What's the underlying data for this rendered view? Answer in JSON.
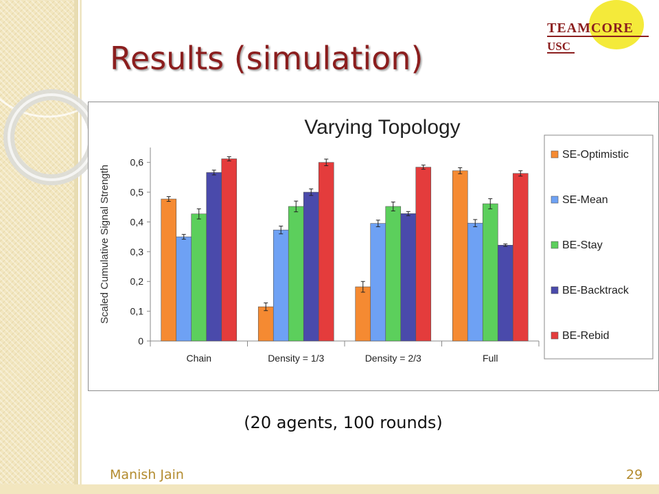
{
  "slide": {
    "title": "Results (simulation)",
    "caption": "(20 agents, 100 rounds)",
    "author": "Manish Jain",
    "page_number": "29",
    "logo_line1": "TEAMCORE",
    "logo_line2": "USC"
  },
  "colors": {
    "title": "#8b1e1e",
    "footer": "#b38b2e",
    "series": [
      "#f58a32",
      "#6ea1f4",
      "#5ccf5c",
      "#4a4aab",
      "#e43c3c"
    ]
  },
  "chart_data": {
    "type": "bar",
    "title": "Varying Topology",
    "xlabel": "",
    "ylabel": "Scaled Cumulative Signal Strength",
    "ylim": [
      0,
      0.65
    ],
    "yticks": [
      "0",
      "0,1",
      "0,2",
      "0,3",
      "0,4",
      "0,5",
      "0,6"
    ],
    "categories": [
      "Chain",
      "Density = 1/3",
      "Density = 2/3",
      "Full"
    ],
    "series": [
      {
        "name": "SE-Optimistic",
        "values": [
          0.477,
          0.115,
          0.182,
          0.572
        ],
        "errors": [
          0.008,
          0.013,
          0.018,
          0.01
        ]
      },
      {
        "name": "SE-Mean",
        "values": [
          0.35,
          0.373,
          0.395,
          0.396
        ],
        "errors": [
          0.008,
          0.013,
          0.011,
          0.012
        ]
      },
      {
        "name": "BE-Stay",
        "values": [
          0.427,
          0.452,
          0.452,
          0.461
        ],
        "errors": [
          0.017,
          0.018,
          0.015,
          0.017
        ]
      },
      {
        "name": "BE-Backtrack",
        "values": [
          0.566,
          0.5,
          0.428,
          0.322
        ],
        "errors": [
          0.008,
          0.011,
          0.007,
          0.004
        ]
      },
      {
        "name": "BE-Rebid",
        "values": [
          0.612,
          0.6,
          0.584,
          0.563
        ],
        "errors": [
          0.007,
          0.011,
          0.007,
          0.009
        ]
      }
    ],
    "legend": "right",
    "grid": false
  }
}
